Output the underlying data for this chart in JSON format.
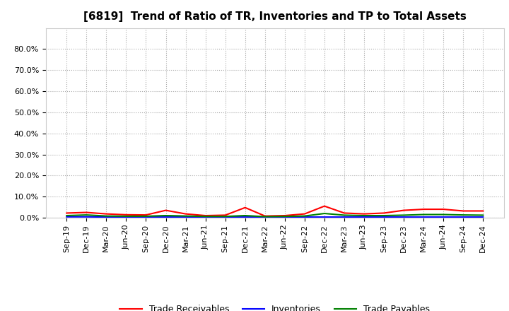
{
  "title": "[6819]  Trend of Ratio of TR, Inventories and TP to Total Assets",
  "x_labels": [
    "Sep-19",
    "Dec-19",
    "Mar-20",
    "Jun-20",
    "Sep-20",
    "Dec-20",
    "Mar-21",
    "Jun-21",
    "Sep-21",
    "Dec-21",
    "Mar-22",
    "Jun-22",
    "Sep-22",
    "Dec-22",
    "Mar-23",
    "Jun-23",
    "Sep-23",
    "Dec-23",
    "Mar-24",
    "Jun-24",
    "Sep-24",
    "Dec-24"
  ],
  "trade_receivables": [
    0.022,
    0.025,
    0.018,
    0.014,
    0.013,
    0.035,
    0.018,
    0.01,
    0.012,
    0.048,
    0.008,
    0.01,
    0.018,
    0.055,
    0.022,
    0.018,
    0.022,
    0.035,
    0.04,
    0.04,
    0.032,
    0.032
  ],
  "inventories": [
    0.004,
    0.004,
    0.003,
    0.003,
    0.003,
    0.003,
    0.003,
    0.003,
    0.003,
    0.003,
    0.003,
    0.003,
    0.003,
    0.003,
    0.003,
    0.003,
    0.003,
    0.003,
    0.003,
    0.003,
    0.003,
    0.003
  ],
  "trade_payables": [
    0.01,
    0.013,
    0.008,
    0.007,
    0.007,
    0.01,
    0.008,
    0.006,
    0.006,
    0.01,
    0.005,
    0.006,
    0.008,
    0.02,
    0.012,
    0.01,
    0.01,
    0.012,
    0.015,
    0.015,
    0.013,
    0.012
  ],
  "tr_color": "#FF0000",
  "inv_color": "#0000FF",
  "tp_color": "#008000",
  "ylim": [
    0.0,
    0.9
  ],
  "yticks": [
    0.0,
    0.1,
    0.2,
    0.3,
    0.4,
    0.5,
    0.6,
    0.7,
    0.8
  ],
  "bg_color": "#FFFFFF",
  "plot_bg_color": "#FFFFFF",
  "grid_color": "#AAAAAA",
  "legend_labels": [
    "Trade Receivables",
    "Inventories",
    "Trade Payables"
  ],
  "title_fontsize": 11,
  "tick_fontsize": 8,
  "legend_fontsize": 9
}
